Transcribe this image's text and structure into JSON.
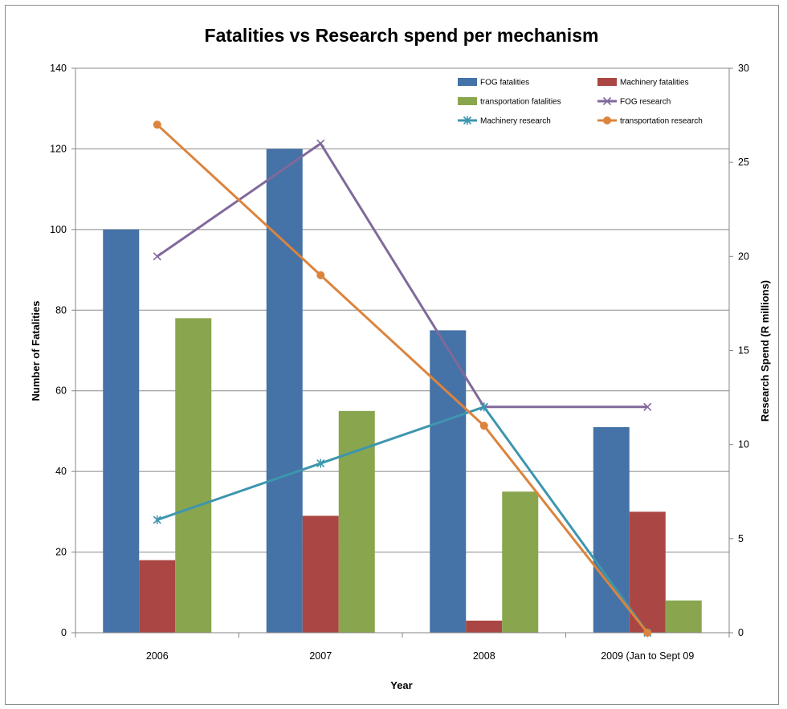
{
  "chart_data": {
    "type": "bar",
    "title": "Fatalities vs Research spend per mechanism",
    "xlabel": "Year",
    "ylabel": "Number of Fatalities",
    "y2label": "Research Spend (R millions)",
    "categories": [
      "2006",
      "2007",
      "2008",
      "2009 (Jan to Sept 09"
    ],
    "ylim": [
      0,
      140
    ],
    "yticks": [
      0,
      20,
      40,
      60,
      80,
      100,
      120,
      140
    ],
    "y2lim": [
      0,
      30
    ],
    "y2ticks": [
      0,
      5,
      10,
      15,
      20,
      25,
      30
    ],
    "grid": true,
    "legend_position": "top-right",
    "series": [
      {
        "name": "FOG fatalities",
        "kind": "bar",
        "axis": "left",
        "color": "#4572A7",
        "values": [
          100,
          120,
          75,
          51
        ]
      },
      {
        "name": "Machinery fatalities",
        "kind": "bar",
        "axis": "left",
        "color": "#AA4643",
        "values": [
          18,
          29,
          3,
          30
        ]
      },
      {
        "name": "transportation fatalities",
        "kind": "bar",
        "axis": "left",
        "color": "#89A54E",
        "values": [
          78,
          55,
          35,
          8
        ]
      },
      {
        "name": "FOG research",
        "kind": "line",
        "axis": "right",
        "marker": "x",
        "color": "#80699B",
        "values": [
          20,
          26,
          12,
          12
        ]
      },
      {
        "name": "Machinery research",
        "kind": "line",
        "axis": "right",
        "marker": "star",
        "color": "#3D96AE",
        "values": [
          6,
          9,
          12,
          0
        ]
      },
      {
        "name": "transportation research",
        "kind": "line",
        "axis": "right",
        "marker": "circle",
        "color": "#DB843D",
        "values": [
          27,
          19,
          11,
          0
        ]
      }
    ]
  }
}
